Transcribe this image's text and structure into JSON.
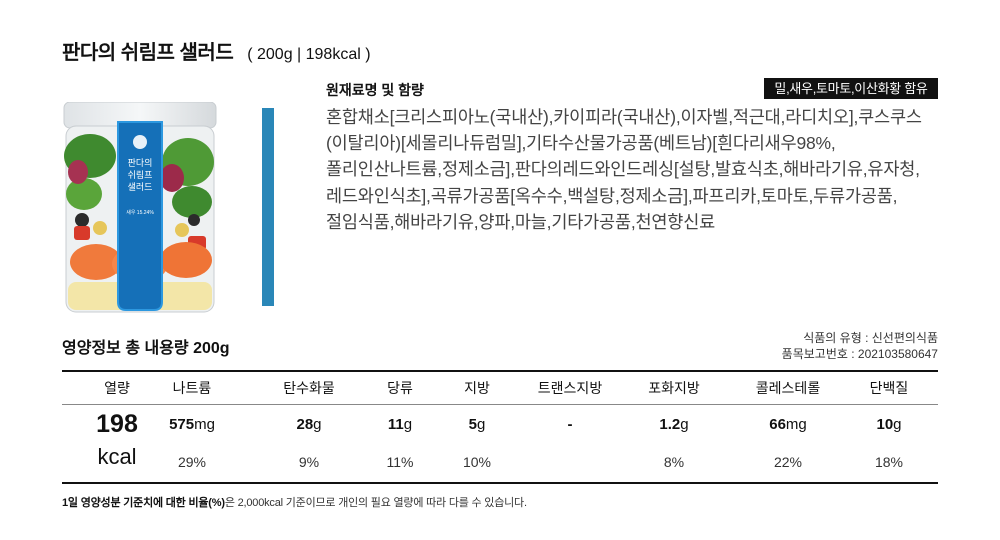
{
  "product": {
    "title": "판다의 쉬림프 샐러드",
    "spec": "( 200g  |  198kcal )"
  },
  "jar_label": {
    "line1": "판다의",
    "line2": "쉬림프",
    "line3": "샐러드",
    "shrimp": "새우 15.24%"
  },
  "ingredients": {
    "heading": "원재료명 및 함량",
    "allergen": "밀,새우,토마토,이산화황 함유",
    "text": "혼합채소[크리스피아노(국내산),카이피라(국내산),이자벨,적근대,라디치오],쿠스쿠스(이탈리아)[세몰리나듀럼밀],기타수산물가공품(베트남)[흰다리새우98%,폴리인산나트륨,정제소금],판다의레드와인드레싱[설탕,발효식초,해바라기유,유자청,레드와인식초],곡류가공품[옥수수,백설탕,정제소금],파프리카,토마토,두류가공품,절임식품,해바라기유,양파,마늘,기타가공품,천연향신료"
  },
  "nutrition": {
    "title": "영양정보 총 내용량 200g",
    "food_type": "식품의 유형 : 신선편의식품",
    "report_no": "품목보고번호 : 202103580647",
    "calories": {
      "label": "열량",
      "value": "198",
      "unit": "kcal"
    },
    "columns": [
      {
        "label": "나트륨",
        "value": "575",
        "unit": "mg",
        "pct": "29%"
      },
      {
        "label": "탄수화물",
        "value": "28",
        "unit": "g",
        "pct": "9%"
      },
      {
        "label": "당류",
        "value": "11",
        "unit": "g",
        "pct": "11%"
      },
      {
        "label": "지방",
        "value": "5",
        "unit": "g",
        "pct": "10%"
      },
      {
        "label": "트랜스지방",
        "value": "-",
        "unit": "",
        "pct": ""
      },
      {
        "label": "포화지방",
        "value": "1.2",
        "unit": "g",
        "pct": "8%"
      },
      {
        "label": "콜레스테롤",
        "value": "66",
        "unit": "mg",
        "pct": "22%"
      },
      {
        "label": "단백질",
        "value": "10",
        "unit": "g",
        "pct": "18%"
      }
    ],
    "footnote_bold": "1일 영양성분 기준치에 대한 비율(%)",
    "footnote_rest": "은 2,000kcal 기준이므로 개인의 필요 열량에 따라 다를 수 있습니다."
  },
  "colors": {
    "accent_bar": "#2a87b8",
    "jar_label_blue": "#1570b8",
    "allergen_bg": "#111111"
  }
}
